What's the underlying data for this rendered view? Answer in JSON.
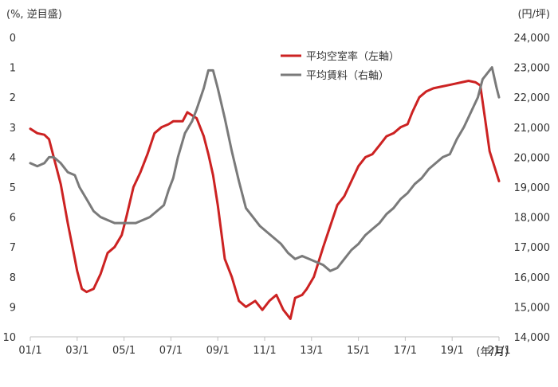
{
  "chart_data": {
    "type": "line",
    "left_axis_unit": "(%, 逆目盛)",
    "right_axis_unit": "(円/坪)",
    "x_axis_unit": "(年/月)",
    "x_ticks": [
      "01/1",
      "03/1",
      "05/1",
      "07/1",
      "09/1",
      "11/1",
      "13/1",
      "15/1",
      "17/1",
      "19/1",
      "21/1"
    ],
    "left_ticks": [
      "0",
      "1",
      "2",
      "3",
      "4",
      "5",
      "6",
      "7",
      "8",
      "9",
      "10"
    ],
    "right_ticks": [
      "24,000",
      "23,000",
      "22,000",
      "21,000",
      "20,000",
      "19,000",
      "18,000",
      "17,000",
      "16,000",
      "15,000",
      "14,000"
    ],
    "left_axis": {
      "min": 0,
      "max": 10,
      "reversed": true
    },
    "right_axis": {
      "min": 14000,
      "max": 24000
    },
    "x_range": [
      2001.0,
      2021.0
    ],
    "legend_placement": "top-right",
    "grid": false,
    "series": [
      {
        "name": "平均空室率（左軸）",
        "axis": "left",
        "color": "#cc2222",
        "x": [
          2001.0,
          2001.3,
          2001.6,
          2001.8,
          2002.0,
          2002.3,
          2002.6,
          2002.9,
          2003.0,
          2003.2,
          2003.4,
          2003.7,
          2004.0,
          2004.3,
          2004.6,
          2004.9,
          2005.1,
          2005.4,
          2005.7,
          2006.0,
          2006.3,
          2006.6,
          2006.9,
          2007.1,
          2007.5,
          2007.7,
          2008.1,
          2008.4,
          2008.6,
          2008.8,
          2009.0,
          2009.3,
          2009.6,
          2009.9,
          2010.2,
          2010.6,
          2010.9,
          2011.2,
          2011.5,
          2011.8,
          2012.1,
          2012.3,
          2012.6,
          2012.8,
          2013.1,
          2013.3,
          2013.5,
          2013.8,
          2014.1,
          2014.4,
          2014.7,
          2015.0,
          2015.3,
          2015.6,
          2015.9,
          2016.2,
          2016.5,
          2016.8,
          2017.1,
          2017.3,
          2017.6,
          2017.9,
          2018.2,
          2018.5,
          2018.8,
          2019.1,
          2019.4,
          2019.7,
          2020.0,
          2020.2,
          2020.4,
          2020.6,
          2020.8,
          2021.0
        ],
        "values": [
          3.05,
          3.2,
          3.25,
          3.4,
          4.0,
          4.9,
          6.2,
          7.4,
          7.8,
          8.4,
          8.5,
          8.4,
          7.9,
          7.2,
          7.0,
          6.6,
          6.0,
          5.0,
          4.5,
          3.9,
          3.2,
          3.0,
          2.9,
          2.8,
          2.8,
          2.5,
          2.7,
          3.3,
          3.9,
          4.6,
          5.6,
          7.4,
          8.0,
          8.8,
          9.0,
          8.8,
          9.1,
          8.8,
          8.6,
          9.1,
          9.4,
          8.7,
          8.6,
          8.4,
          8.0,
          7.5,
          7.0,
          6.3,
          5.6,
          5.3,
          4.8,
          4.3,
          4.0,
          3.9,
          3.6,
          3.3,
          3.2,
          3.0,
          2.9,
          2.5,
          2.0,
          1.8,
          1.7,
          1.65,
          1.6,
          1.55,
          1.5,
          1.45,
          1.5,
          1.6,
          2.7,
          3.8,
          4.3,
          4.8
        ]
      },
      {
        "name": "平均賃料（右軸）",
        "axis": "right",
        "color": "#7a7a7a",
        "x": [
          2001.0,
          2001.3,
          2001.6,
          2001.8,
          2002.0,
          2002.3,
          2002.6,
          2002.9,
          2003.1,
          2003.4,
          2003.7,
          2004.0,
          2004.3,
          2004.6,
          2004.9,
          2005.2,
          2005.5,
          2005.8,
          2006.1,
          2006.4,
          2006.7,
          2006.9,
          2007.1,
          2007.3,
          2007.6,
          2007.9,
          2008.1,
          2008.4,
          2008.6,
          2008.8,
          2009.0,
          2009.3,
          2009.6,
          2009.9,
          2010.2,
          2010.5,
          2010.8,
          2011.1,
          2011.4,
          2011.7,
          2012.0,
          2012.3,
          2012.6,
          2012.9,
          2013.2,
          2013.5,
          2013.8,
          2014.1,
          2014.4,
          2014.7,
          2015.0,
          2015.3,
          2015.6,
          2015.9,
          2016.2,
          2016.5,
          2016.8,
          2017.1,
          2017.4,
          2017.7,
          2018.0,
          2018.3,
          2018.6,
          2018.9,
          2019.2,
          2019.5,
          2019.8,
          2020.1,
          2020.3,
          2020.5,
          2020.7,
          2020.9,
          2021.0
        ],
        "values": [
          19.8,
          19.7,
          19.8,
          20.0,
          20.0,
          19.8,
          19.5,
          19.4,
          19.0,
          18.6,
          18.2,
          18.0,
          17.9,
          17.8,
          17.8,
          17.8,
          17.8,
          17.9,
          18.0,
          18.2,
          18.4,
          18.9,
          19.3,
          20.0,
          20.8,
          21.2,
          21.6,
          22.3,
          22.9,
          22.9,
          22.3,
          21.3,
          20.2,
          19.2,
          18.3,
          18.0,
          17.7,
          17.5,
          17.3,
          17.1,
          16.8,
          16.6,
          16.7,
          16.6,
          16.5,
          16.4,
          16.2,
          16.3,
          16.6,
          16.9,
          17.1,
          17.4,
          17.6,
          17.8,
          18.1,
          18.3,
          18.6,
          18.8,
          19.1,
          19.3,
          19.6,
          19.8,
          20.0,
          20.1,
          20.6,
          21.0,
          21.5,
          22.0,
          22.6,
          22.8,
          23.0,
          22.3,
          22.0
        ]
      }
    ]
  }
}
